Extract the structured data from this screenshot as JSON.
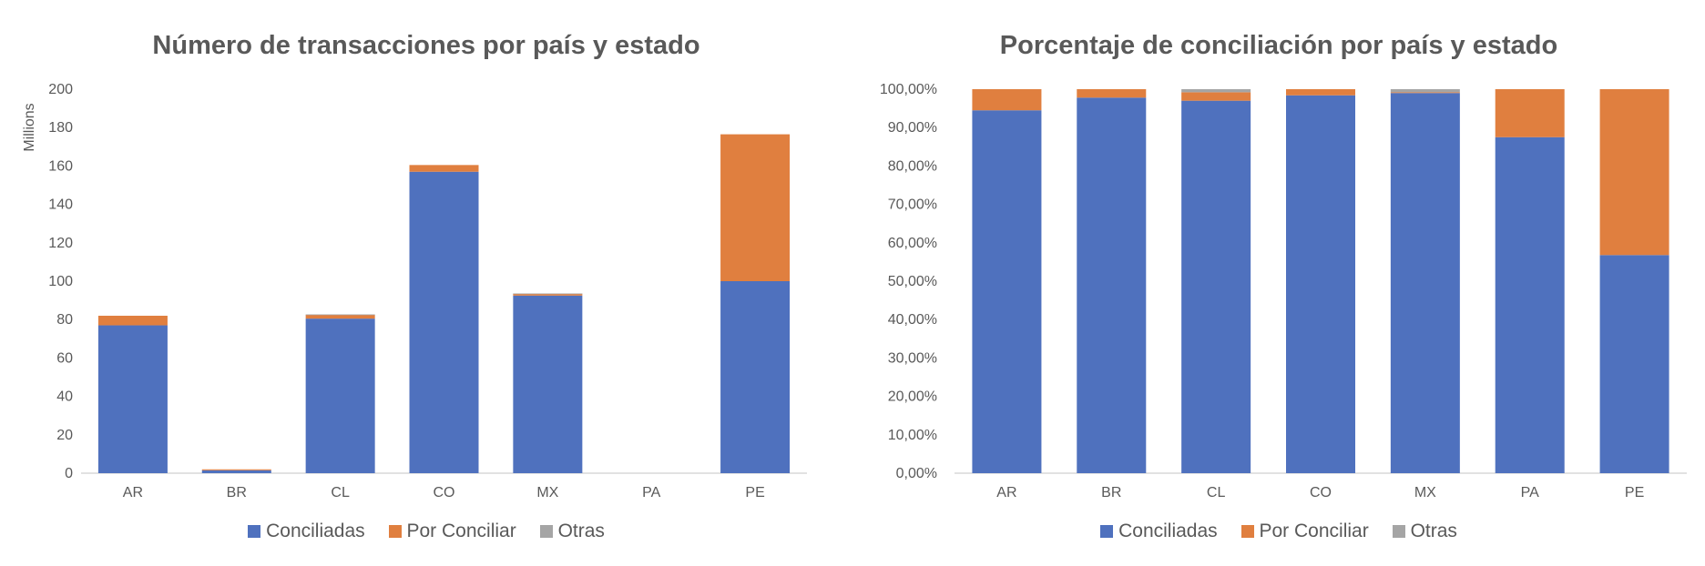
{
  "colors": {
    "Conciliadas": "#4f71be",
    "Por Conciliar": "#e07f3f",
    "Otras": "#a5a5a5"
  },
  "legend": [
    "Conciliadas",
    "Por Conciliar",
    "Otras"
  ],
  "chart_data": [
    {
      "type": "bar",
      "stacked": true,
      "title": "Número de transacciones por país y estado",
      "ylabel": "Millions",
      "xlabel": "",
      "ylim": [
        0,
        200
      ],
      "yticks": [
        "0",
        "20",
        "40",
        "60",
        "80",
        "100",
        "120",
        "140",
        "160",
        "180",
        "200"
      ],
      "categories": [
        "AR",
        "BR",
        "CL",
        "CO",
        "MX",
        "PA",
        "PE"
      ],
      "series": [
        {
          "name": "Conciliadas",
          "values": [
            77,
            1.5,
            80.5,
            157,
            92.5,
            0,
            100
          ]
        },
        {
          "name": "Por Conciliar",
          "values": [
            5,
            0.5,
            2,
            3.5,
            1,
            0,
            76.5
          ]
        },
        {
          "name": "Otras",
          "values": [
            0,
            0,
            0.2,
            0,
            0.1,
            0,
            0
          ]
        }
      ],
      "legend_position": "bottom",
      "grid": false
    },
    {
      "type": "bar",
      "stacked": true,
      "title": "Porcentaje de conciliación por país y estado",
      "ylabel": "",
      "xlabel": "",
      "ylim": [
        0,
        100
      ],
      "yticks": [
        "0,00%",
        "10,00%",
        "20,00%",
        "30,00%",
        "40,00%",
        "50,00%",
        "60,00%",
        "70,00%",
        "80,00%",
        "90,00%",
        "100,00%"
      ],
      "categories": [
        "AR",
        "BR",
        "CL",
        "CO",
        "MX",
        "PA",
        "PE"
      ],
      "series": [
        {
          "name": "Conciliadas",
          "values": [
            94.5,
            97.8,
            97.0,
            98.4,
            99.0,
            87.5,
            56.8
          ]
        },
        {
          "name": "Por Conciliar",
          "values": [
            5.5,
            2.2,
            2.2,
            1.6,
            0.2,
            12.5,
            43.2
          ]
        },
        {
          "name": "Otras",
          "values": [
            0,
            0,
            0.8,
            0,
            0.8,
            0,
            0
          ]
        }
      ],
      "legend_position": "bottom",
      "grid": false
    }
  ]
}
